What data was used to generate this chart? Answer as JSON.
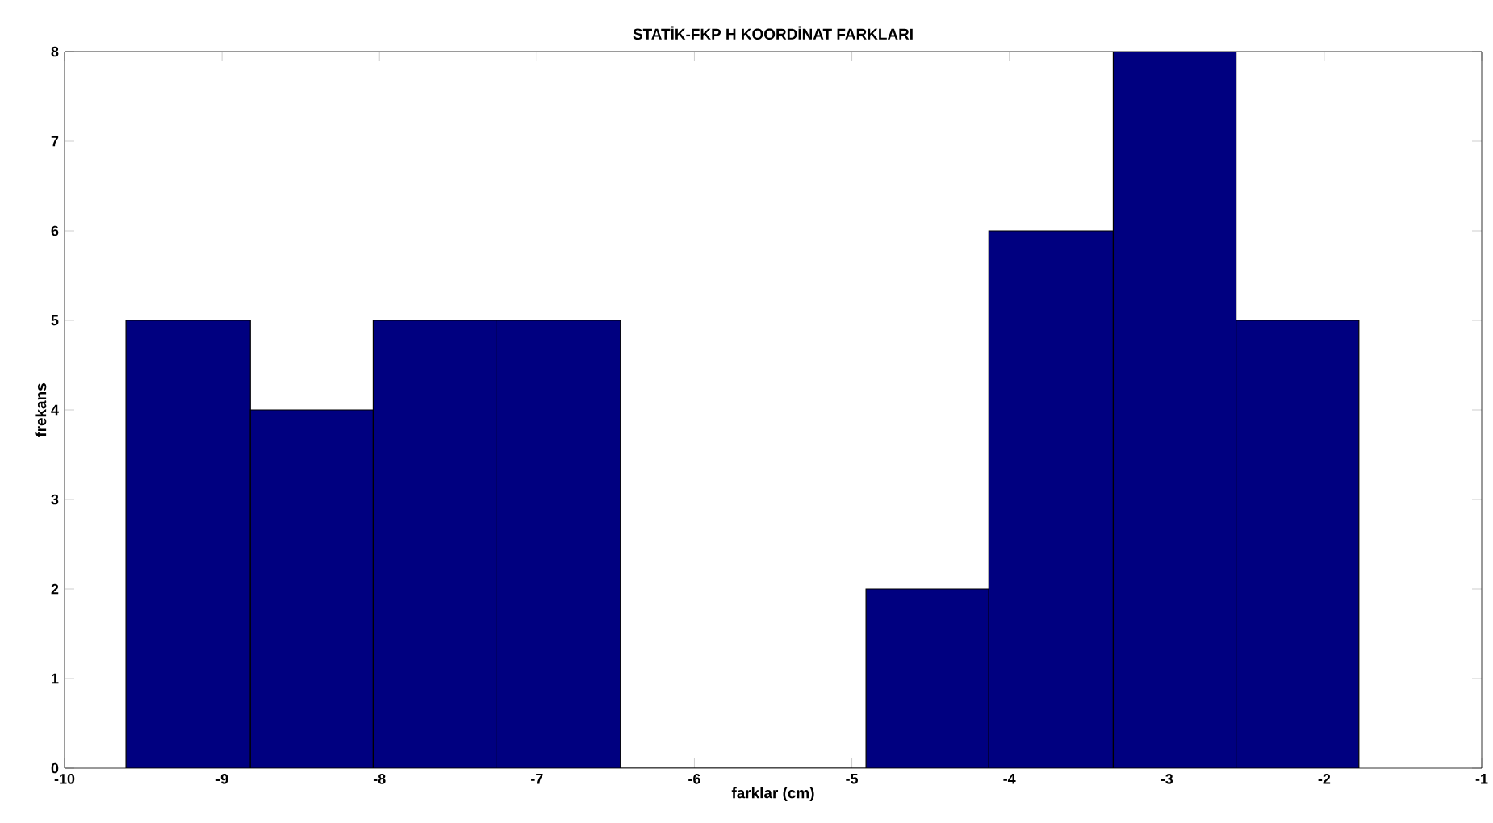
{
  "chart_data": {
    "type": "histogram",
    "title": "STATİK-FKP H KOORDİNAT FARKLARI",
    "xlabel": "farklar (cm)",
    "ylabel": "frekans",
    "bins": [
      -9.61,
      -8.82,
      -8.04,
      -7.26,
      -6.47,
      -4.91,
      -4.13,
      -3.34,
      -2.56,
      -1.78
    ],
    "values": [
      5,
      4,
      5,
      5,
      0,
      2,
      6,
      8,
      5
    ],
    "color": "#000080",
    "xlim": [
      -10,
      -1
    ],
    "xticks": [
      -10,
      -9,
      -8,
      -7,
      -6,
      -5,
      -4,
      -3,
      -2,
      -1
    ],
    "ylim": [
      0,
      8
    ],
    "yticks": [
      0,
      1,
      2,
      3,
      4,
      5,
      6,
      7,
      8
    ],
    "grid": false
  }
}
